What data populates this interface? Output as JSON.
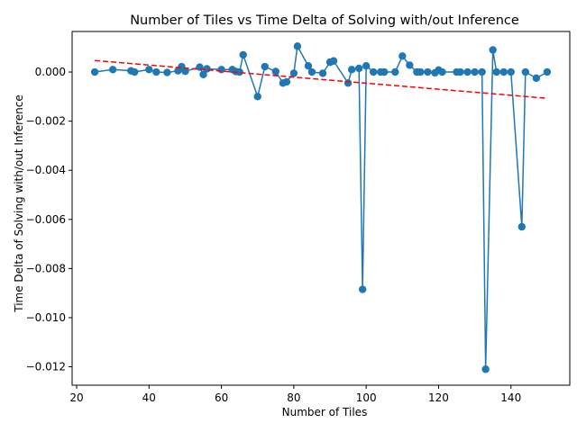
{
  "chart_data": {
    "type": "line",
    "title": "Number of Tiles vs Time Delta of Solving with/out Inference",
    "xlabel": "Number of Tiles",
    "ylabel": "Time Delta of Solving with/out Inference",
    "xlim": [
      18.75,
      156.25
    ],
    "ylim": [
      -0.01275,
      0.00165
    ],
    "xticks": [
      20,
      40,
      60,
      80,
      100,
      120,
      140
    ],
    "yticks": [
      -0.012,
      -0.01,
      -0.008,
      -0.006,
      -0.004,
      -0.002,
      0.0
    ],
    "ytick_labels": [
      "−0.012",
      "−0.010",
      "−0.008",
      "−0.006",
      "−0.004",
      "−0.002",
      "0.000"
    ],
    "grid": false,
    "series": [
      {
        "style": "line-markers",
        "color": "#1f77b4",
        "x": [
          25,
          30,
          35,
          36,
          40,
          42,
          45,
          48,
          49,
          50,
          54,
          55,
          56,
          60,
          63,
          64,
          65,
          66,
          70,
          72,
          75,
          77,
          78,
          80,
          81,
          84,
          85,
          88,
          90,
          91,
          95,
          96,
          98,
          99,
          100,
          102,
          104,
          105,
          108,
          110,
          112,
          114,
          115,
          117,
          119,
          120,
          121,
          125,
          126,
          128,
          130,
          132,
          133,
          135,
          136,
          138,
          140,
          143,
          144,
          147,
          150
        ],
        "y": [
          0.0,
          0.0001,
          5e-05,
          0.0,
          0.0001,
          0.0,
          -2e-05,
          5e-05,
          0.00022,
          3e-05,
          0.0002,
          -0.0001,
          0.00013,
          0.0001,
          0.0001,
          2e-05,
          0.0,
          0.0007,
          -0.001,
          0.00022,
          2e-05,
          -0.00045,
          -0.0004,
          -5e-05,
          0.00105,
          0.00025,
          0.0,
          -5e-05,
          0.0004,
          0.00045,
          -0.00045,
          0.0001,
          0.00015,
          -0.00885,
          0.00025,
          0.0,
          0.0,
          0.0,
          0.0,
          0.00065,
          0.00028,
          0.0,
          0.0,
          0.0,
          -3e-05,
          8e-05,
          0.0,
          0.0,
          0.0,
          0.0,
          0.0,
          0.0,
          -0.0121,
          0.0009,
          0.0,
          0.0,
          0.0,
          -0.0063,
          0.0,
          -0.00025,
          0.0
        ]
      },
      {
        "style": "dashed-trend",
        "color": "#ff0000",
        "x": [
          25,
          150
        ],
        "y": [
          0.00047,
          -0.00107
        ]
      }
    ]
  }
}
